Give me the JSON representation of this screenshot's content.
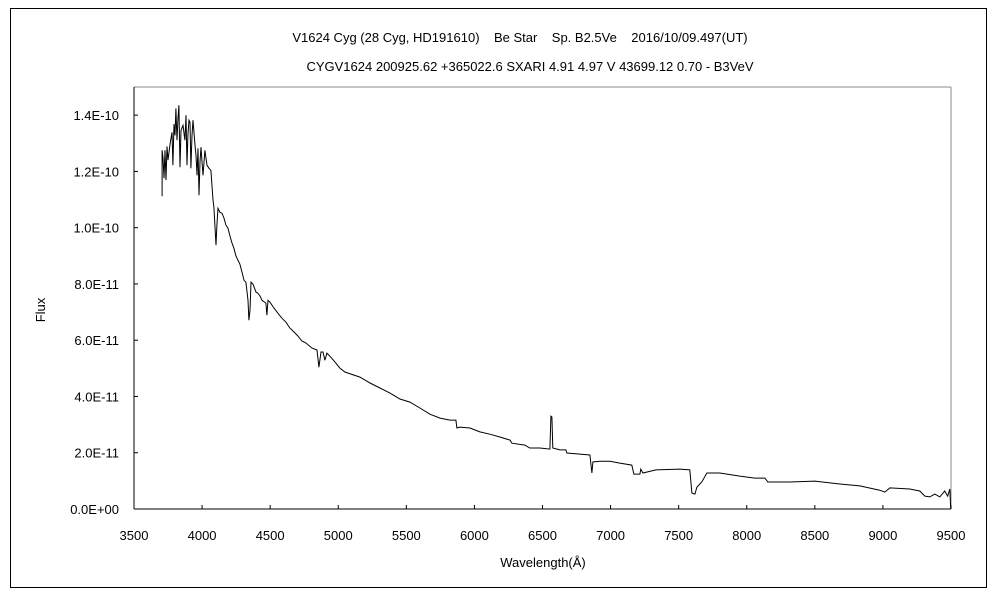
{
  "chart_data": {
    "type": "line",
    "title": "V1624 Cyg (28 Cyg, HD191610)    Be Star    Sp. B2.5Ve    2016/10/09.497(UT)",
    "subtitle": "CYGV1624 200925.62 +365022.6 SXARI 4.91 4.97 V 43699.12 0.70 - B3VeV",
    "xlabel": "Wavelength(Å)",
    "ylabel": "Flux",
    "xlim": [
      3500,
      9500
    ],
    "ylim": [
      0,
      1.5e-10
    ],
    "y_unit_note": "flux values listed in units of 1E-11",
    "xticks": [
      3500,
      4000,
      4500,
      5000,
      5500,
      6000,
      6500,
      7000,
      7500,
      8000,
      8500,
      9000,
      9500
    ],
    "xtick_labels": [
      "3500",
      "4000",
      "4500",
      "5000",
      "5500",
      "6000",
      "6500",
      "7000",
      "7500",
      "8000",
      "8500",
      "9000",
      "9500"
    ],
    "yticks": [
      0,
      2e-11,
      4e-11,
      6e-11,
      8e-11,
      1e-10,
      1.2e-10,
      1.4e-10
    ],
    "ytick_labels": [
      "0.0E+00",
      "2.0E-11",
      "4.0E-11",
      "6.0E-11",
      "8.0E-11",
      "1.0E-10",
      "1.2E-10",
      "1.4E-10"
    ],
    "grid": false,
    "series": [
      {
        "name": "spectrum",
        "color": "#000000",
        "wavelength": [
          3706,
          3706,
          3713,
          3720,
          3728,
          3735,
          3742,
          3750,
          3764,
          3779,
          3786,
          3794,
          3801,
          3808,
          3816,
          3823,
          3830,
          3838,
          3845,
          3860,
          3874,
          3882,
          3889,
          3896,
          3904,
          3911,
          3918,
          3926,
          3933,
          3948,
          3955,
          3963,
          3970,
          3977,
          3985,
          3992,
          3999,
          4007,
          4021,
          4036,
          4051,
          4065,
          4080,
          4087,
          4102,
          4109,
          4117,
          4131,
          4146,
          4161,
          4175,
          4190,
          4205,
          4220,
          4234,
          4249,
          4264,
          4278,
          4293,
          4308,
          4322,
          4337,
          4344,
          4352,
          4359,
          4374,
          4396,
          4410,
          4425,
          4440,
          4469,
          4476,
          4484,
          4499,
          4528,
          4557,
          4587,
          4616,
          4645,
          4675,
          4704,
          4733,
          4763,
          4807,
          4844,
          4858,
          4873,
          4888,
          4902,
          4917,
          4939,
          4976,
          5012,
          5049,
          5159,
          5233,
          5306,
          5380,
          5453,
          5526,
          5600,
          5673,
          5747,
          5820,
          5864,
          5871,
          5893,
          5967,
          6040,
          6114,
          6187,
          6261,
          6275,
          6371,
          6407,
          6481,
          6554,
          6562,
          6569,
          6576,
          6628,
          6672,
          6679,
          6775,
          6848,
          6863,
          6870,
          6921,
          6995,
          7068,
          7156,
          7171,
          7215,
          7222,
          7237,
          7333,
          7509,
          7582,
          7597,
          7619,
          7634,
          7670,
          7707,
          7802,
          7949,
          8059,
          8133,
          8155,
          8316,
          8500,
          8683,
          8830,
          8977,
          9014,
          9051,
          9197,
          9271,
          9308,
          9344,
          9381,
          9418,
          9454,
          9476,
          9491,
          9498
        ],
        "flux_e11": [
          11.12,
          12.75,
          12.47,
          11.76,
          12.75,
          11.69,
          12.89,
          12.4,
          12.93,
          13.39,
          12.22,
          13.68,
          13.28,
          14.24,
          13.11,
          13.89,
          14.35,
          12.15,
          13.46,
          13.64,
          13.11,
          14.0,
          12.22,
          13.28,
          13.82,
          13.75,
          12.11,
          13.28,
          13.82,
          12.93,
          12.57,
          11.86,
          12.82,
          11.15,
          12.33,
          12.86,
          12.4,
          11.86,
          12.75,
          12.22,
          12.11,
          12.04,
          10.98,
          10.73,
          9.38,
          10.09,
          10.69,
          10.55,
          10.51,
          10.34,
          10.09,
          9.98,
          9.7,
          9.45,
          9.27,
          8.99,
          8.84,
          8.7,
          8.42,
          8.13,
          8.06,
          7.42,
          6.71,
          7.07,
          8.06,
          7.99,
          7.71,
          7.67,
          7.57,
          7.42,
          7.32,
          6.89,
          7.42,
          7.35,
          7.14,
          6.96,
          6.78,
          6.64,
          6.43,
          6.29,
          6.15,
          5.97,
          5.9,
          5.72,
          5.65,
          5.04,
          5.58,
          5.58,
          5.29,
          5.54,
          5.43,
          5.22,
          5.01,
          4.87,
          4.69,
          4.48,
          4.3,
          4.12,
          3.91,
          3.8,
          3.59,
          3.37,
          3.23,
          3.16,
          3.16,
          2.88,
          2.91,
          2.88,
          2.74,
          2.66,
          2.56,
          2.45,
          2.34,
          2.27,
          2.17,
          2.17,
          2.13,
          3.3,
          3.27,
          2.17,
          2.1,
          2.1,
          1.99,
          1.95,
          1.92,
          1.28,
          1.67,
          1.7,
          1.7,
          1.63,
          1.56,
          1.24,
          1.24,
          1.42,
          1.28,
          1.39,
          1.42,
          1.39,
          0.57,
          0.53,
          0.78,
          0.96,
          1.28,
          1.28,
          1.17,
          1.1,
          1.1,
          0.96,
          0.96,
          0.99,
          0.89,
          0.82,
          0.67,
          0.6,
          0.75,
          0.71,
          0.64,
          0.46,
          0.43,
          0.53,
          0.43,
          0.64,
          0.46,
          0.71,
          0.0
        ]
      }
    ]
  }
}
